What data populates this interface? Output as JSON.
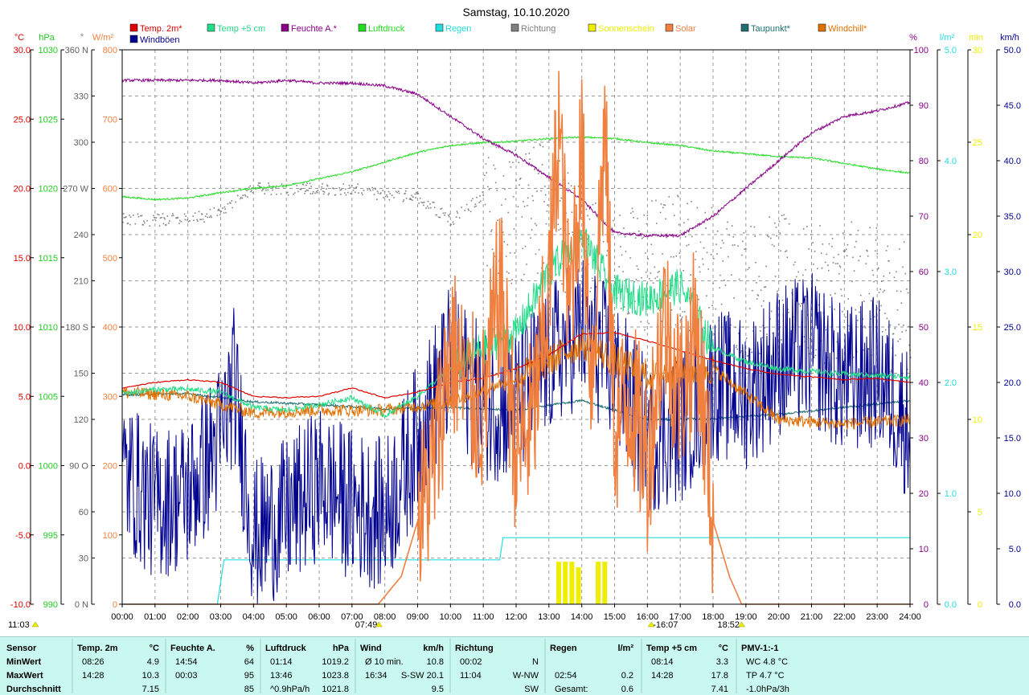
{
  "chart_data": {
    "type": "line",
    "title": "Samstag, 10.10.2020",
    "x_ticks": [
      "00:00",
      "01:00",
      "02:00",
      "03:00",
      "04:00",
      "05:00",
      "06:00",
      "07:00",
      "08:00",
      "09:00",
      "10:00",
      "11:00",
      "12:00",
      "13:00",
      "14:00",
      "15:00",
      "16:00",
      "17:00",
      "18:00",
      "19:00",
      "20:00",
      "21:00",
      "22:00",
      "23:00",
      "24:00"
    ],
    "xlim": [
      0,
      24
    ],
    "grid": true,
    "legend": [
      {
        "label": "Temp. 2m*",
        "color": "#dd0000"
      },
      {
        "label": "Temp +5 cm",
        "color": "#22dd88"
      },
      {
        "label": "Feuchte A.*",
        "color": "#880088"
      },
      {
        "label": "Luftdruck",
        "color": "#22dd22"
      },
      {
        "label": "Regen",
        "color": "#22dddd"
      },
      {
        "label": "Richtung",
        "color": "#808080"
      },
      {
        "label": "Sonnenschein",
        "color": "#eeee00"
      },
      {
        "label": "Solar",
        "color": "#f08040"
      },
      {
        "label": "Taupunkt*",
        "color": "#207070"
      },
      {
        "label": "Windchill*",
        "color": "#e07000"
      },
      {
        "label": "Windböen",
        "color": "#000090"
      }
    ],
    "axes": [
      {
        "unit": "°C",
        "color": "#dd0000",
        "ticks": [
          "30.0",
          "25.0",
          "20.0",
          "15.0",
          "10.0",
          "5.0",
          "0.0",
          "-5.0",
          "-10.0"
        ],
        "range": [
          -10,
          30
        ]
      },
      {
        "unit": "hPa",
        "color": "#22cc22",
        "ticks": [
          "1030",
          "1025",
          "1020",
          "1015",
          "1010",
          "1005",
          "1000",
          "995",
          "990"
        ],
        "range": [
          990,
          1030
        ]
      },
      {
        "unit": "°",
        "color": "#606060",
        "ticks": [
          "360 N",
          "330",
          "300",
          "270 W",
          "240",
          "210",
          "180 S",
          "150",
          "120",
          "90 O",
          "60",
          "30",
          "0 N"
        ],
        "range": [
          0,
          360
        ]
      },
      {
        "unit": "W/m²",
        "color": "#f08040",
        "ticks": [
          "800",
          "700",
          "600",
          "500",
          "400",
          "300",
          "200",
          "100",
          "0"
        ],
        "range": [
          0,
          800
        ]
      },
      {
        "unit": "%",
        "color": "#880088",
        "ticks": [
          "100",
          "90",
          "80",
          "70",
          "60",
          "50",
          "40",
          "30",
          "20",
          "10",
          "0"
        ],
        "range": [
          0,
          100
        ]
      },
      {
        "unit": "l/m²",
        "color": "#22dddd",
        "ticks": [
          "5.0",
          "4.0",
          "3.0",
          "2.0",
          "1.0",
          "0.0"
        ],
        "range": [
          0,
          5
        ]
      },
      {
        "unit": "min",
        "color": "#eeee00",
        "ticks": [
          "30",
          "25",
          "20",
          "15",
          "10",
          "5",
          "0"
        ],
        "range": [
          0,
          30
        ]
      },
      {
        "unit": "km/h",
        "color": "#000090",
        "ticks": [
          "50.0",
          "45.0",
          "40.0",
          "35.0",
          "30.0",
          "25.0",
          "20.0",
          "15.0",
          "10.0",
          "5.0",
          "0.0"
        ],
        "range": [
          0,
          50
        ]
      }
    ],
    "markers": [
      {
        "label": "11:03",
        "x": 0
      },
      {
        "label": "07:49",
        "x": 7.82
      },
      {
        "label": "-16:07",
        "x": 16.12
      },
      {
        "label": "18:52",
        "x": 18.87
      }
    ],
    "series": [
      {
        "name": "Temp. 2m*",
        "axis": "°C",
        "x": [
          0,
          1,
          2,
          3,
          4,
          5,
          6,
          7,
          8,
          9,
          10,
          11,
          12,
          13,
          14,
          15,
          16,
          17,
          18,
          19,
          20,
          21,
          22,
          23,
          24
        ],
        "values": [
          5.6,
          6.0,
          6.2,
          6.0,
          5.0,
          4.9,
          5.0,
          5.6,
          4.9,
          5.3,
          6.0,
          6.3,
          7.0,
          8.0,
          9.5,
          9.6,
          9.0,
          8.3,
          7.6,
          7.0,
          6.6,
          6.4,
          6.2,
          6.3,
          6.0
        ]
      },
      {
        "name": "Temp +5 cm",
        "axis": "°C",
        "x": [
          0,
          1,
          2,
          3,
          4,
          5,
          6,
          7,
          8,
          9,
          10,
          11,
          12,
          13,
          14,
          15,
          16,
          17,
          18,
          19,
          20,
          21,
          22,
          23,
          24
        ],
        "values": [
          5.2,
          5.5,
          5.5,
          5.3,
          4.2,
          4.0,
          4.4,
          4.9,
          3.6,
          5.0,
          7.0,
          8.5,
          9.5,
          14.0,
          16.5,
          12.5,
          12.0,
          13.0,
          8.5,
          7.5,
          7.0,
          6.8,
          6.6,
          6.5,
          6.4
        ]
      },
      {
        "name": "Feuchte A.*",
        "axis": "%",
        "x": [
          0,
          1,
          2,
          3,
          4,
          5,
          6,
          7,
          8,
          9,
          10,
          11,
          12,
          13,
          14,
          15,
          16,
          17,
          18,
          19,
          20,
          21,
          22,
          23,
          24
        ],
        "values": [
          94.5,
          94.5,
          94.5,
          94.5,
          94,
          94.5,
          94,
          94,
          93.5,
          92,
          88,
          84,
          81,
          77,
          73,
          67,
          66.5,
          66.5,
          70,
          75,
          80,
          85,
          88,
          89,
          90.5
        ]
      },
      {
        "name": "Luftdruck",
        "axis": "hPa",
        "x": [
          0,
          1,
          2,
          3,
          4,
          5,
          6,
          7,
          8,
          9,
          10,
          11,
          12,
          13,
          14,
          15,
          16,
          17,
          18,
          19,
          20,
          21,
          22,
          23,
          24
        ],
        "values": [
          1019.4,
          1019.2,
          1019.3,
          1019.7,
          1020.0,
          1020.2,
          1020.7,
          1021.2,
          1021.9,
          1022.6,
          1023.1,
          1023.3,
          1023.4,
          1023.6,
          1023.7,
          1023.6,
          1023.3,
          1023.1,
          1022.7,
          1022.5,
          1022.3,
          1022.2,
          1021.8,
          1021.4,
          1021.1
        ]
      },
      {
        "name": "Regen",
        "axis": "l/m²",
        "x": [
          0,
          2.9,
          3.1,
          11.5,
          11.6,
          24
        ],
        "values": [
          0,
          0,
          0.4,
          0.4,
          0.6,
          0.6
        ]
      },
      {
        "name": "Solar",
        "axis": "W/m²",
        "x": [
          0,
          7.8,
          8.5,
          9.0,
          9.5,
          10.0,
          10.5,
          11.0,
          11.5,
          12.0,
          12.5,
          13.0,
          13.3,
          13.6,
          14.0,
          14.3,
          14.7,
          15.0,
          15.5,
          16.0,
          16.5,
          17.0,
          17.5,
          18.0,
          18.5,
          18.87,
          19,
          24
        ],
        "values": [
          0,
          0,
          40,
          120,
          200,
          380,
          300,
          280,
          460,
          220,
          260,
          450,
          700,
          420,
          650,
          320,
          690,
          250,
          300,
          200,
          420,
          300,
          400,
          120,
          40,
          0,
          0,
          0
        ]
      },
      {
        "name": "Taupunkt*",
        "axis": "°C",
        "x": [
          0,
          2,
          4,
          6,
          8,
          10,
          12,
          14,
          16,
          18,
          20,
          22,
          24
        ],
        "values": [
          5.1,
          5.2,
          4.6,
          4.4,
          4.1,
          4.2,
          4.0,
          4.7,
          3.3,
          3.4,
          3.7,
          4.2,
          4.7
        ]
      },
      {
        "name": "Windchill*",
        "axis": "°C",
        "x": [
          0,
          2,
          4,
          6,
          8,
          10,
          12,
          14,
          16,
          18,
          20,
          22,
          24
        ],
        "values": [
          5.3,
          5.0,
          3.8,
          4.0,
          4.0,
          4.6,
          6.3,
          8.8,
          6.5,
          7.0,
          3.3,
          3.0,
          3.3
        ]
      },
      {
        "name": "Windböen",
        "axis": "km/h",
        "x": [
          0,
          1,
          2,
          3,
          3.4,
          4,
          5,
          6,
          7,
          8,
          9,
          10,
          11,
          12,
          13,
          14,
          15,
          16,
          17,
          18,
          19,
          20,
          21,
          22,
          23,
          24
        ],
        "values": [
          12,
          9,
          10,
          15,
          20,
          6,
          8,
          11,
          9,
          8,
          15,
          22,
          18,
          18,
          22,
          25,
          21,
          15,
          16,
          20,
          19,
          22,
          23,
          20,
          21,
          16
        ]
      },
      {
        "name": "Richtung",
        "axis": "°",
        "x": [
          0,
          1,
          2,
          3,
          4,
          5,
          6,
          7,
          8,
          9,
          10,
          11,
          12,
          13,
          14,
          15,
          16,
          17,
          18,
          19,
          20,
          21,
          22,
          23,
          24
        ],
        "values": [
          250,
          250,
          250,
          255,
          270,
          270,
          270,
          270,
          265,
          265,
          250,
          265,
          250,
          260,
          230,
          210,
          220,
          225,
          215,
          205,
          210,
          200,
          205,
          200,
          190
        ]
      },
      {
        "name": "Sonnenschein",
        "axis": "min",
        "x": [
          13.3,
          13.5,
          13.7,
          13.9,
          14.5,
          14.7
        ],
        "values": [
          2.3,
          2.3,
          2.3,
          2.0,
          2.3,
          2.3
        ]
      }
    ]
  },
  "stats": {
    "headers": [
      {
        "label": "Sensor",
        "unit": ""
      },
      {
        "label": "Temp. 2m",
        "unit": "°C"
      },
      {
        "label": "Feuchte A.",
        "unit": "%"
      },
      {
        "label": "Luftdruck",
        "unit": "hPa"
      },
      {
        "label": "Wind",
        "unit": "km/h"
      },
      {
        "label": "Richtung",
        "unit": ""
      },
      {
        "label": "Regen",
        "unit": "l/m²"
      },
      {
        "label": "Temp +5 cm",
        "unit": "°C"
      },
      {
        "label": "PMV-1:-1",
        "unit": ""
      }
    ],
    "rows": [
      {
        "label": "MinWert",
        "cells": [
          [
            "08:26",
            "4.9"
          ],
          [
            "14:54",
            "64"
          ],
          [
            "01:14",
            "1019.2"
          ],
          [
            "Ø 10 min.",
            "10.8"
          ],
          [
            "00:02",
            "N"
          ],
          [
            "",
            ""
          ],
          [
            "08:14",
            "3.3"
          ],
          [
            "WC 4.8 °C",
            ""
          ]
        ]
      },
      {
        "label": "MaxWert",
        "cells": [
          [
            "14:28",
            "10.3"
          ],
          [
            "00:03",
            "95"
          ],
          [
            "13:46",
            "1023.8"
          ],
          [
            "16:34",
            "S-SW 20.1"
          ],
          [
            "11:04",
            "W-NW"
          ],
          [
            "02:54",
            "0.2"
          ],
          [
            "14:28",
            "17.8"
          ],
          [
            "TP 4.7 °C",
            ""
          ]
        ]
      },
      {
        "label": "Durchschnitt",
        "cells": [
          [
            "",
            "7.15"
          ],
          [
            "",
            "85"
          ],
          [
            "^0.9hPa/h",
            "1021.8"
          ],
          [
            "",
            "9.5"
          ],
          [
            "",
            "SW"
          ],
          [
            "Gesamt:",
            "0.6"
          ],
          [
            "",
            "7.41"
          ],
          [
            "-1.0hPa/3h",
            ""
          ]
        ]
      }
    ]
  }
}
